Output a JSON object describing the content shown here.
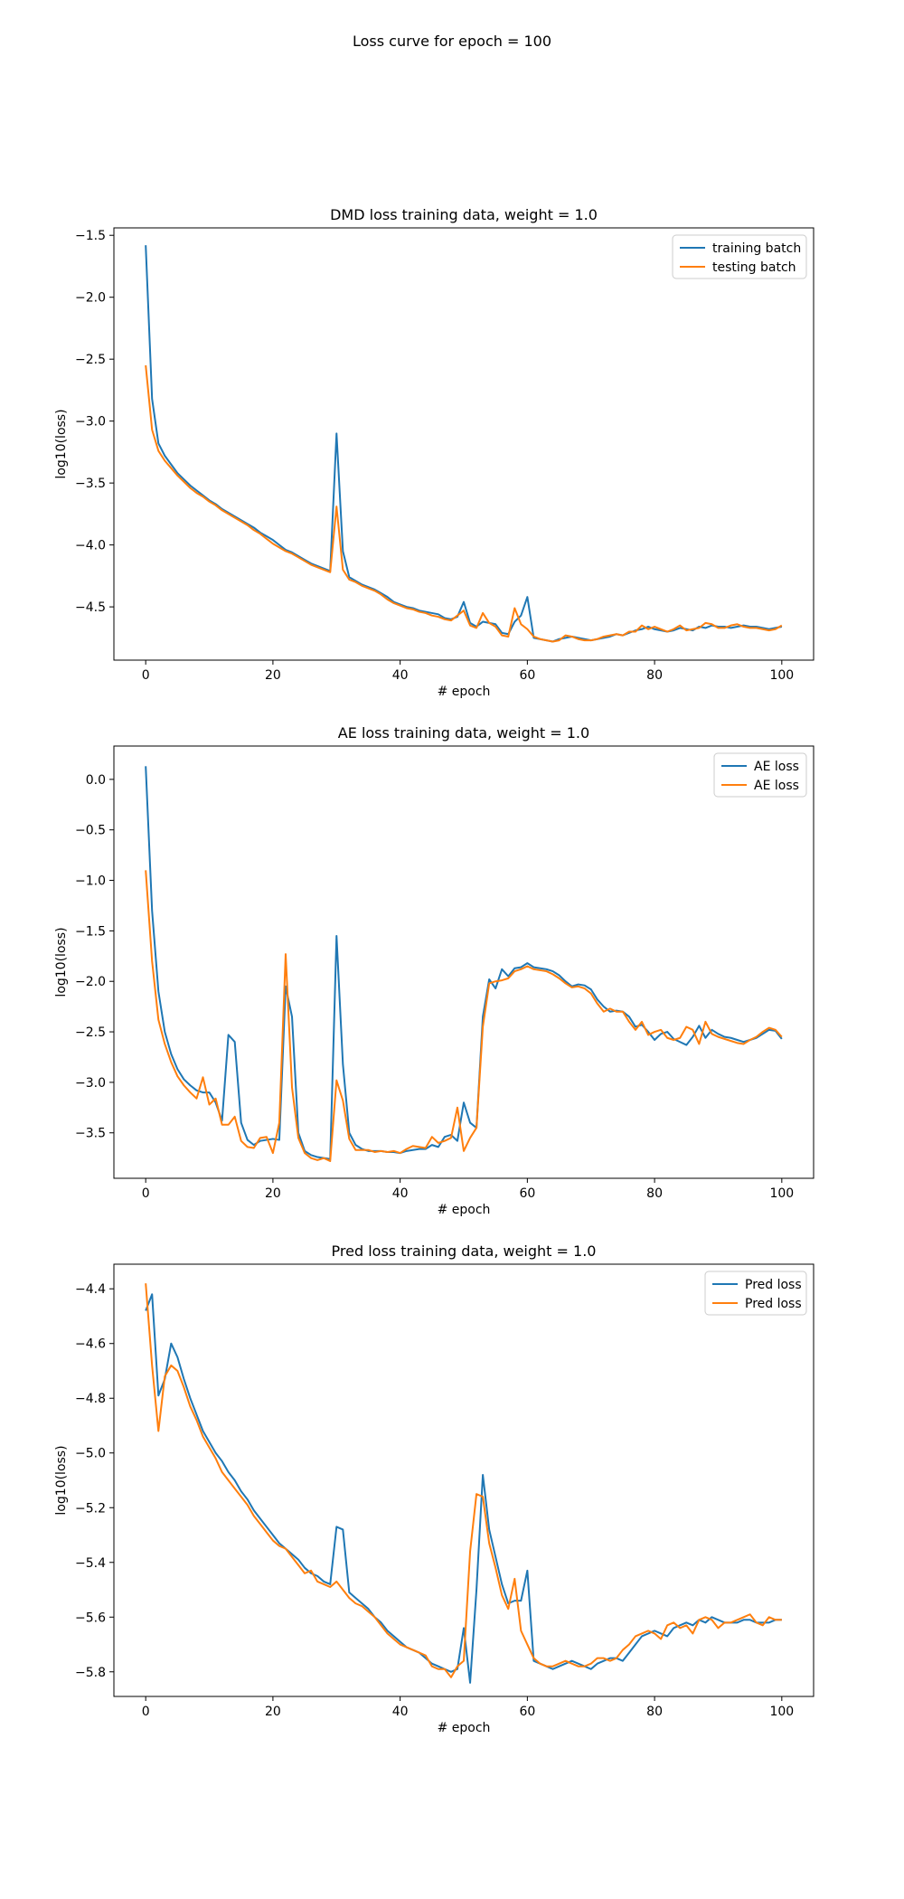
{
  "figure": {
    "suptitle": "Loss curve for epoch = 100"
  },
  "colors": {
    "blue": "#1f77b4",
    "orange": "#ff7f0e"
  },
  "chart_data": [
    {
      "type": "line",
      "title": "DMD loss training data, weight = 1.0",
      "xlabel": "# epoch",
      "ylabel": "log10(loss)",
      "xlim": [
        -5,
        105
      ],
      "ylim": [
        -4.93,
        -1.44
      ],
      "xticks": [
        0,
        20,
        40,
        60,
        80,
        100
      ],
      "yticks": [
        -4.5,
        -4.0,
        -3.5,
        -3.0,
        -2.5,
        -2.0,
        -1.5
      ],
      "legend": "upper-right",
      "series": [
        {
          "name": "training batch",
          "color": "#1f77b4",
          "values": [
            -1.58,
            -2.82,
            -3.18,
            -3.28,
            -3.35,
            -3.42,
            -3.47,
            -3.52,
            -3.56,
            -3.6,
            -3.64,
            -3.67,
            -3.71,
            -3.74,
            -3.77,
            -3.8,
            -3.83,
            -3.86,
            -3.9,
            -3.93,
            -3.96,
            -4.0,
            -4.04,
            -4.06,
            -4.09,
            -4.12,
            -4.15,
            -4.17,
            -4.19,
            -4.21,
            -3.1,
            -4.05,
            -4.26,
            -4.29,
            -4.32,
            -4.34,
            -4.36,
            -4.39,
            -4.42,
            -4.46,
            -4.48,
            -4.5,
            -4.51,
            -4.53,
            -4.54,
            -4.55,
            -4.56,
            -4.59,
            -4.6,
            -4.58,
            -4.46,
            -4.63,
            -4.66,
            -4.62,
            -4.63,
            -4.64,
            -4.71,
            -4.72,
            -4.62,
            -4.57,
            -4.42,
            -4.75,
            -4.76,
            -4.77,
            -4.78,
            -4.76,
            -4.75,
            -4.74,
            -4.75,
            -4.76,
            -4.77,
            -4.76,
            -4.75,
            -4.74,
            -4.72,
            -4.73,
            -4.71,
            -4.69,
            -4.68,
            -4.66,
            -4.68,
            -4.69,
            -4.7,
            -4.69,
            -4.67,
            -4.68,
            -4.69,
            -4.66,
            -4.67,
            -4.65,
            -4.66,
            -4.66,
            -4.67,
            -4.66,
            -4.65,
            -4.66,
            -4.66,
            -4.67,
            -4.68,
            -4.67,
            -4.66
          ]
        },
        {
          "name": "testing batch",
          "color": "#ff7f0e",
          "values": [
            -2.55,
            -3.07,
            -3.24,
            -3.32,
            -3.38,
            -3.44,
            -3.49,
            -3.54,
            -3.58,
            -3.61,
            -3.65,
            -3.68,
            -3.72,
            -3.75,
            -3.78,
            -3.81,
            -3.84,
            -3.88,
            -3.91,
            -3.95,
            -3.99,
            -4.02,
            -4.05,
            -4.07,
            -4.1,
            -4.13,
            -4.16,
            -4.18,
            -4.2,
            -4.22,
            -3.69,
            -4.2,
            -4.28,
            -4.3,
            -4.33,
            -4.35,
            -4.37,
            -4.4,
            -4.44,
            -4.47,
            -4.49,
            -4.51,
            -4.52,
            -4.54,
            -4.55,
            -4.57,
            -4.58,
            -4.6,
            -4.61,
            -4.57,
            -4.53,
            -4.65,
            -4.67,
            -4.55,
            -4.63,
            -4.66,
            -4.73,
            -4.74,
            -4.51,
            -4.64,
            -4.68,
            -4.74,
            -4.76,
            -4.77,
            -4.78,
            -4.77,
            -4.73,
            -4.74,
            -4.76,
            -4.77,
            -4.77,
            -4.76,
            -4.74,
            -4.73,
            -4.72,
            -4.73,
            -4.7,
            -4.7,
            -4.65,
            -4.68,
            -4.66,
            -4.68,
            -4.7,
            -4.68,
            -4.65,
            -4.69,
            -4.68,
            -4.67,
            -4.63,
            -4.64,
            -4.67,
            -4.67,
            -4.65,
            -4.64,
            -4.66,
            -4.67,
            -4.67,
            -4.68,
            -4.69,
            -4.68,
            -4.65
          ]
        }
      ]
    },
    {
      "type": "line",
      "title": "AE loss training data, weight = 1.0",
      "xlabel": "# epoch",
      "ylabel": "log10(loss)",
      "xlim": [
        -5,
        105
      ],
      "ylim": [
        -3.95,
        0.33
      ],
      "xticks": [
        0,
        20,
        40,
        60,
        80,
        100
      ],
      "yticks": [
        -3.5,
        -3.0,
        -2.5,
        -2.0,
        -1.5,
        -1.0,
        -0.5,
        0.0
      ],
      "legend": "upper-right",
      "series": [
        {
          "name": "AE loss",
          "color": "#1f77b4",
          "values": [
            0.13,
            -1.3,
            -2.1,
            -2.5,
            -2.72,
            -2.87,
            -2.97,
            -3.03,
            -3.08,
            -3.1,
            -3.1,
            -3.2,
            -3.38,
            -2.53,
            -2.6,
            -3.4,
            -3.57,
            -3.62,
            -3.58,
            -3.57,
            -3.56,
            -3.57,
            -2.05,
            -2.35,
            -3.5,
            -3.68,
            -3.72,
            -3.74,
            -3.75,
            -3.76,
            -1.55,
            -2.82,
            -3.5,
            -3.62,
            -3.66,
            -3.68,
            -3.68,
            -3.68,
            -3.69,
            -3.69,
            -3.7,
            -3.68,
            -3.67,
            -3.66,
            -3.66,
            -3.62,
            -3.64,
            -3.54,
            -3.52,
            -3.58,
            -3.2,
            -3.4,
            -3.45,
            -2.35,
            -1.98,
            -2.07,
            -1.88,
            -1.95,
            -1.87,
            -1.86,
            -1.82,
            -1.86,
            -1.87,
            -1.88,
            -1.9,
            -1.94,
            -2.0,
            -2.05,
            -2.03,
            -2.04,
            -2.08,
            -2.18,
            -2.25,
            -2.3,
            -2.29,
            -2.3,
            -2.35,
            -2.45,
            -2.43,
            -2.5,
            -2.58,
            -2.52,
            -2.5,
            -2.57,
            -2.6,
            -2.63,
            -2.55,
            -2.44,
            -2.56,
            -2.48,
            -2.52,
            -2.55,
            -2.56,
            -2.58,
            -2.6,
            -2.58,
            -2.56,
            -2.52,
            -2.48,
            -2.49,
            -2.57
          ]
        },
        {
          "name": "AE loss",
          "color": "#ff7f0e",
          "values": [
            -0.9,
            -1.8,
            -2.38,
            -2.62,
            -2.8,
            -2.94,
            -3.03,
            -3.1,
            -3.16,
            -2.95,
            -3.22,
            -3.16,
            -3.42,
            -3.42,
            -3.34,
            -3.58,
            -3.64,
            -3.65,
            -3.55,
            -3.54,
            -3.7,
            -3.4,
            -1.73,
            -3.05,
            -3.55,
            -3.7,
            -3.75,
            -3.77,
            -3.75,
            -3.78,
            -2.98,
            -3.18,
            -3.56,
            -3.67,
            -3.67,
            -3.67,
            -3.69,
            -3.68,
            -3.69,
            -3.68,
            -3.7,
            -3.66,
            -3.63,
            -3.64,
            -3.65,
            -3.54,
            -3.6,
            -3.58,
            -3.55,
            -3.25,
            -3.68,
            -3.55,
            -3.45,
            -2.45,
            -2.02,
            -2.0,
            -1.99,
            -1.97,
            -1.9,
            -1.88,
            -1.85,
            -1.88,
            -1.89,
            -1.9,
            -1.93,
            -1.97,
            -2.02,
            -2.06,
            -2.05,
            -2.07,
            -2.12,
            -2.22,
            -2.3,
            -2.27,
            -2.3,
            -2.3,
            -2.4,
            -2.48,
            -2.4,
            -2.53,
            -2.5,
            -2.48,
            -2.56,
            -2.58,
            -2.56,
            -2.45,
            -2.48,
            -2.62,
            -2.4,
            -2.52,
            -2.55,
            -2.57,
            -2.59,
            -2.61,
            -2.62,
            -2.58,
            -2.55,
            -2.5,
            -2.46,
            -2.48,
            -2.55
          ]
        }
      ]
    },
    {
      "type": "line",
      "title": "Pred loss training data, weight = 1.0",
      "xlabel": "# epoch",
      "ylabel": "log10(loss)",
      "xlim": [
        -5,
        105
      ],
      "ylim": [
        -5.89,
        -4.31
      ],
      "xticks": [
        0,
        20,
        40,
        60,
        80,
        100
      ],
      "yticks": [
        -5.8,
        -5.6,
        -5.4,
        -5.2,
        -5.0,
        -4.8,
        -4.6,
        -4.4
      ],
      "legend": "upper-right",
      "series": [
        {
          "name": "Pred loss",
          "color": "#1f77b4",
          "values": [
            -4.48,
            -4.42,
            -4.79,
            -4.73,
            -4.6,
            -4.65,
            -4.73,
            -4.8,
            -4.86,
            -4.92,
            -4.96,
            -5.0,
            -5.03,
            -5.07,
            -5.1,
            -5.14,
            -5.17,
            -5.21,
            -5.24,
            -5.27,
            -5.3,
            -5.33,
            -5.35,
            -5.37,
            -5.39,
            -5.42,
            -5.44,
            -5.45,
            -5.47,
            -5.48,
            -5.27,
            -5.28,
            -5.51,
            -5.53,
            -5.55,
            -5.57,
            -5.6,
            -5.62,
            -5.65,
            -5.67,
            -5.69,
            -5.71,
            -5.72,
            -5.73,
            -5.75,
            -5.77,
            -5.78,
            -5.79,
            -5.8,
            -5.79,
            -5.64,
            -5.84,
            -5.5,
            -5.08,
            -5.28,
            -5.38,
            -5.48,
            -5.55,
            -5.54,
            -5.54,
            -5.43,
            -5.76,
            -5.77,
            -5.78,
            -5.79,
            -5.78,
            -5.77,
            -5.76,
            -5.77,
            -5.78,
            -5.79,
            -5.77,
            -5.76,
            -5.75,
            -5.75,
            -5.76,
            -5.73,
            -5.7,
            -5.67,
            -5.66,
            -5.65,
            -5.66,
            -5.67,
            -5.64,
            -5.63,
            -5.62,
            -5.63,
            -5.61,
            -5.62,
            -5.6,
            -5.61,
            -5.62,
            -5.62,
            -5.62,
            -5.61,
            -5.61,
            -5.62,
            -5.62,
            -5.62,
            -5.61,
            -5.61
          ]
        },
        {
          "name": "Pred loss",
          "color": "#ff7f0e",
          "values": [
            -4.38,
            -4.68,
            -4.92,
            -4.72,
            -4.68,
            -4.7,
            -4.76,
            -4.83,
            -4.88,
            -4.94,
            -4.98,
            -5.02,
            -5.07,
            -5.1,
            -5.13,
            -5.16,
            -5.19,
            -5.23,
            -5.26,
            -5.29,
            -5.32,
            -5.34,
            -5.35,
            -5.38,
            -5.41,
            -5.44,
            -5.43,
            -5.47,
            -5.48,
            -5.49,
            -5.47,
            -5.5,
            -5.53,
            -5.55,
            -5.56,
            -5.58,
            -5.6,
            -5.63,
            -5.66,
            -5.68,
            -5.7,
            -5.71,
            -5.72,
            -5.73,
            -5.74,
            -5.78,
            -5.79,
            -5.79,
            -5.82,
            -5.78,
            -5.76,
            -5.36,
            -5.15,
            -5.16,
            -5.33,
            -5.42,
            -5.52,
            -5.57,
            -5.46,
            -5.65,
            -5.7,
            -5.75,
            -5.77,
            -5.78,
            -5.78,
            -5.77,
            -5.76,
            -5.77,
            -5.78,
            -5.78,
            -5.77,
            -5.75,
            -5.75,
            -5.76,
            -5.75,
            -5.72,
            -5.7,
            -5.67,
            -5.66,
            -5.65,
            -5.66,
            -5.68,
            -5.63,
            -5.62,
            -5.64,
            -5.63,
            -5.66,
            -5.61,
            -5.6,
            -5.61,
            -5.64,
            -5.62,
            -5.62,
            -5.61,
            -5.6,
            -5.59,
            -5.62,
            -5.63,
            -5.6,
            -5.61,
            -5.61
          ]
        }
      ]
    }
  ]
}
